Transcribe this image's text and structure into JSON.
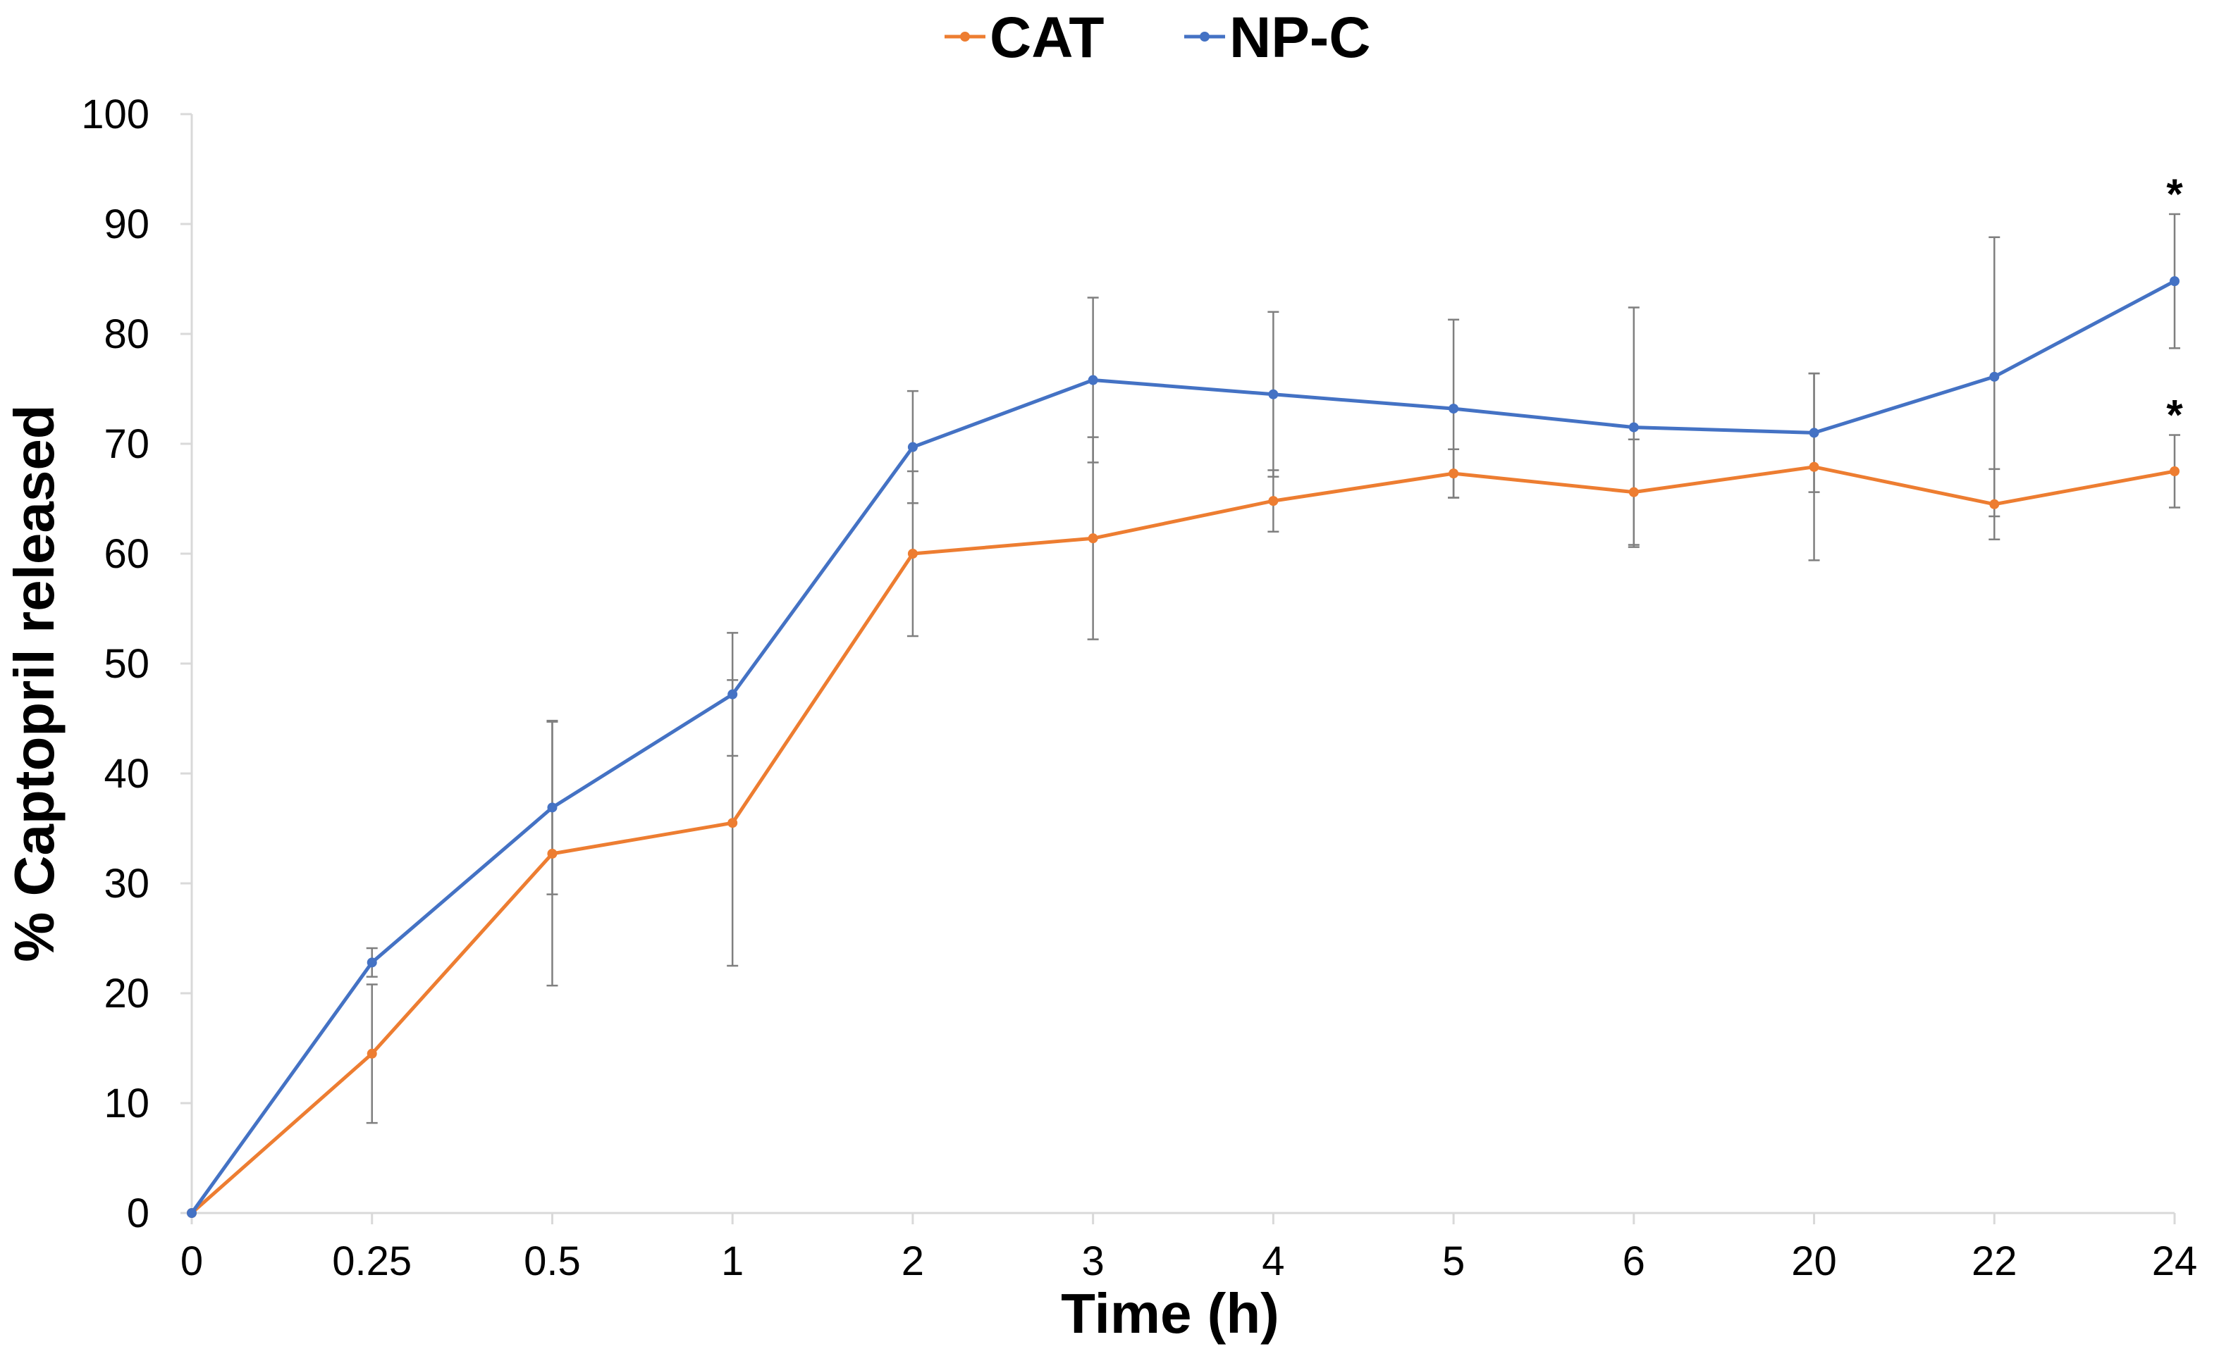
{
  "chart_data": {
    "type": "line",
    "title": "",
    "xlabel": "Time (h)",
    "ylabel": "% Captopril released",
    "categories": [
      "0",
      "0.25",
      "0.5",
      "1",
      "2",
      "3",
      "4",
      "5",
      "6",
      "20",
      "22",
      "24"
    ],
    "ylim": [
      0,
      100
    ],
    "yticks": [
      0,
      10,
      20,
      30,
      40,
      50,
      60,
      70,
      80,
      90,
      100
    ],
    "grid": false,
    "legend_position": "top-center",
    "error_bar_color": "#7f7f7f",
    "series": [
      {
        "name": "CAT",
        "color": "#ED7D31",
        "values": [
          0,
          14.5,
          32.7,
          35.5,
          60.0,
          61.4,
          64.8,
          67.3,
          65.6,
          67.9,
          64.5,
          67.5
        ],
        "error": [
          0,
          6.3,
          12.0,
          13.0,
          7.5,
          9.2,
          2.8,
          2.2,
          4.8,
          8.5,
          3.2,
          3.3
        ],
        "annotations": [
          {
            "category": "24",
            "text": "*"
          }
        ]
      },
      {
        "name": "NP-C",
        "color": "#4472C4",
        "values": [
          0,
          22.8,
          36.9,
          47.2,
          69.7,
          75.8,
          74.5,
          73.2,
          71.5,
          71.0,
          76.1,
          84.8
        ],
        "error": [
          0,
          1.3,
          7.9,
          5.6,
          5.1,
          7.5,
          7.5,
          8.1,
          10.9,
          5.4,
          12.7,
          6.1
        ],
        "annotations": [
          {
            "category": "24",
            "text": "*"
          }
        ]
      }
    ]
  }
}
